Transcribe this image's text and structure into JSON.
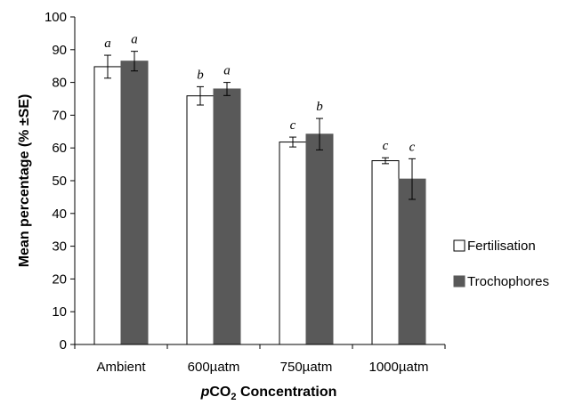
{
  "chart_data": {
    "type": "bar",
    "categories": [
      "Ambient",
      "600µatm",
      "750µatm",
      "1000µatm"
    ],
    "series": [
      {
        "name": "Fertilisation",
        "values": [
          84.8,
          75.9,
          61.8,
          56.1
        ],
        "errors": [
          3.5,
          2.8,
          1.5,
          0.9
        ],
        "letters": [
          "a",
          "b",
          "c",
          "c"
        ],
        "color": "#ffffff",
        "stroke": "#000000"
      },
      {
        "name": "Trochophores",
        "values": [
          86.5,
          78.0,
          64.2,
          50.5
        ],
        "errors": [
          3.0,
          2.0,
          4.8,
          6.2
        ],
        "letters": [
          "a",
          "a",
          "b",
          "c"
        ],
        "color": "#595959",
        "stroke": "#595959"
      }
    ],
    "ylabel": "Mean percentage (% ±SE)",
    "xlabel_parts": {
      "italic_prefix": "p",
      "main": "CO",
      "subscript": "2",
      "suffix": " Concentration"
    },
    "ylim": [
      0,
      100
    ],
    "yticks": [
      0,
      10,
      20,
      30,
      40,
      50,
      60,
      70,
      80,
      90,
      100
    ],
    "grid": false,
    "legend_position": "right"
  }
}
